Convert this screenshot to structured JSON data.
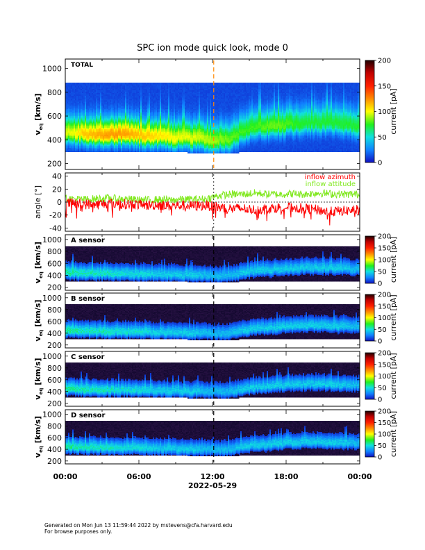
{
  "chart_data": {
    "type": "heatmap",
    "title": "SPC ion mode quick look, mode 0",
    "xlabel": "2022-05-29",
    "x_ticks": [
      "00:00",
      "06:00",
      "12:00",
      "18:00",
      "00:00"
    ],
    "x_range_hours": [
      0,
      24
    ],
    "panels": [
      {
        "id": "total",
        "type": "heatmap",
        "label": "TOTAL",
        "ylabel": "v_eq [km/s]",
        "ylabel_main": "v",
        "ylabel_sub": "eq",
        "ylabel_unit": "[km/s]",
        "y_range": [
          150,
          1080
        ],
        "y_ticks": [
          "200",
          "400",
          "600",
          "800",
          "1000"
        ],
        "y_tick_values": [
          200,
          400,
          600,
          800,
          1000
        ],
        "colorbar": {
          "label": "current [pA]",
          "range": [
            0,
            200
          ],
          "ticks": [
            "0",
            "50",
            "100",
            "150",
            "200"
          ],
          "tick_values": [
            0,
            50,
            100,
            150,
            200
          ]
        },
        "data_band_top_kms": 880,
        "peak_speed_hourly_kms": [
          460,
          450,
          445,
          440,
          440,
          435,
          430,
          425,
          420,
          415,
          410,
          405,
          400,
          405,
          470,
          500,
          510,
          520,
          530,
          540,
          545,
          540,
          530,
          520
        ],
        "peak_current_hourly_pA": [
          85,
          100,
          105,
          110,
          110,
          105,
          100,
          95,
          90,
          85,
          85,
          80,
          75,
          70,
          65,
          65,
          70,
          70,
          65,
          60,
          60,
          60,
          60,
          60
        ]
      },
      {
        "id": "angle",
        "type": "line",
        "ylabel": "angle [°]",
        "y_range": [
          -45,
          45
        ],
        "y_ticks": [
          "-40",
          "-20",
          "0",
          "20",
          "40"
        ],
        "y_tick_values": [
          -40,
          -20,
          0,
          20,
          40
        ],
        "series": [
          {
            "name": "inflow azimuth",
            "color": "#ff0000",
            "mean_hourly_deg": [
              -2,
              -3,
              -4,
              -2,
              -3,
              -3,
              -5,
              -4,
              -6,
              -5,
              -6,
              -5,
              -8,
              -10,
              -10,
              -12,
              -10,
              -8,
              -8,
              -10,
              -12,
              -15,
              -14,
              -12
            ]
          },
          {
            "name": "inflow attitude",
            "color": "#7fe81c",
            "mean_hourly_deg": [
              5,
              4,
              5,
              6,
              5,
              4,
              3,
              4,
              3,
              4,
              4,
              5,
              10,
              12,
              12,
              14,
              12,
              12,
              13,
              12,
              14,
              13,
              12,
              12
            ]
          }
        ]
      },
      {
        "id": "a",
        "type": "heatmap",
        "label": "A sensor",
        "ylabel": "v_eq [km/s]",
        "y_range": [
          150,
          1080
        ],
        "y_ticks": [
          "200",
          "400",
          "600",
          "800",
          "1000"
        ],
        "y_tick_values": [
          200,
          400,
          600,
          800,
          1000
        ],
        "colorbar": {
          "label": "current [pA]",
          "range": [
            0,
            200
          ],
          "ticks": [
            "0",
            "50",
            "100",
            "150",
            "200"
          ],
          "tick_values": [
            0,
            50,
            100,
            150,
            200
          ]
        }
      },
      {
        "id": "b",
        "type": "heatmap",
        "label": "B sensor",
        "ylabel": "v_eq [km/s]",
        "y_range": [
          150,
          1080
        ],
        "y_ticks": [
          "200",
          "400",
          "600",
          "800",
          "1000"
        ],
        "y_tick_values": [
          200,
          400,
          600,
          800,
          1000
        ],
        "colorbar": {
          "label": "current [pA]",
          "range": [
            0,
            200
          ],
          "ticks": [
            "0",
            "50",
            "100",
            "150",
            "200"
          ],
          "tick_values": [
            0,
            50,
            100,
            150,
            200
          ]
        }
      },
      {
        "id": "c",
        "type": "heatmap",
        "label": "C sensor",
        "ylabel": "v_eq [km/s]",
        "y_range": [
          150,
          1080
        ],
        "y_ticks": [
          "200",
          "400",
          "600",
          "800",
          "1000"
        ],
        "y_tick_values": [
          200,
          400,
          600,
          800,
          1000
        ],
        "colorbar": {
          "label": "current [pA]",
          "range": [
            0,
            200
          ],
          "ticks": [
            "0",
            "50",
            "100",
            "150",
            "200"
          ],
          "tick_values": [
            0,
            50,
            100,
            150,
            200
          ]
        }
      },
      {
        "id": "d",
        "type": "heatmap",
        "label": "D sensor",
        "ylabel": "v_eq [km/s]",
        "y_range": [
          150,
          1080
        ],
        "y_ticks": [
          "200",
          "400",
          "600",
          "800",
          "1000"
        ],
        "y_tick_values": [
          200,
          400,
          600,
          800,
          1000
        ],
        "colorbar": {
          "label": "current [pA]",
          "range": [
            0,
            200
          ],
          "ticks": [
            "0",
            "50",
            "100",
            "150",
            "200"
          ],
          "tick_values": [
            0,
            50,
            100,
            150,
            200
          ]
        }
      }
    ],
    "sensor_peak_speed_hourly_kms": [
      440,
      430,
      430,
      425,
      420,
      420,
      415,
      410,
      405,
      400,
      400,
      395,
      390,
      395,
      440,
      470,
      480,
      500,
      510,
      520,
      525,
      520,
      510,
      500
    ],
    "sensor_peak_current_hourly_pA": [
      60,
      55,
      55,
      55,
      50,
      50,
      50,
      45,
      45,
      45,
      45,
      40,
      40,
      40,
      45,
      45,
      45,
      45,
      45,
      45,
      45,
      45,
      45,
      40
    ],
    "marker_time_hours": 12.1
  },
  "footer": {
    "line1": "Generated on Mon Jun 13 11:59:44 2022 by mstevens@cfa.harvard.edu",
    "line2": "For browse purposes only."
  }
}
